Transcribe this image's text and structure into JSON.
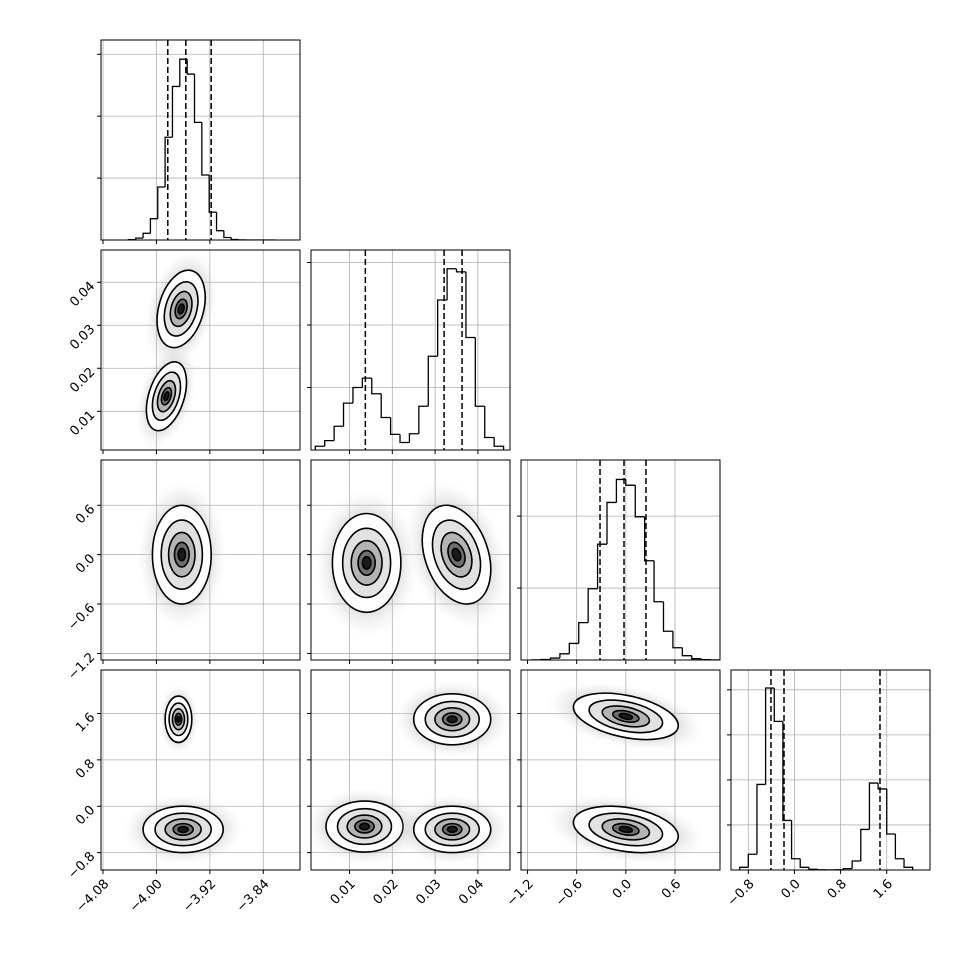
{
  "chart_data": {
    "type": "corner",
    "color": "#000000",
    "grid": true,
    "params": [
      {
        "lim": [
          -4.083,
          -3.785
        ],
        "ticks": [
          {
            "value": -4.08,
            "label": "−4.08"
          },
          {
            "value": -4.0,
            "label": "−4.00"
          },
          {
            "value": -3.92,
            "label": "−3.92"
          },
          {
            "value": -3.84,
            "label": "−3.84"
          }
        ]
      },
      {
        "lim": [
          0.001,
          0.0475
        ],
        "ticks": [
          0.01,
          0.02,
          0.03,
          0.04
        ]
      },
      {
        "lim": [
          -1.28,
          1.15
        ],
        "ticks": [
          {
            "value": -1.2,
            "label": "−1.2"
          },
          {
            "value": -0.6,
            "label": "−0.6"
          },
          {
            "value": 0,
            "label": "0.0"
          },
          0.6
        ]
      },
      {
        "lim": [
          -1.1,
          2.35
        ],
        "ticks": [
          {
            "value": -0.8,
            "label": "−0.8"
          },
          {
            "value": 0,
            "label": "0.0"
          },
          0.8,
          1.6
        ]
      }
    ],
    "hists": [
      {
        "bins": [
          -4.042,
          -4.031,
          -4.02,
          -4.009,
          -3.998,
          -3.987,
          -3.976,
          -3.965,
          -3.954,
          -3.943,
          -3.932,
          -3.921,
          -3.91,
          -3.899,
          -3.888,
          -3.877,
          -3.866,
          -3.855,
          -3.844,
          -3.833,
          -3.822
        ],
        "values": [
          5,
          30,
          108,
          344,
          856,
          1660,
          2480,
          2920,
          2680,
          1900,
          1050,
          450,
          150,
          40,
          8,
          2,
          0,
          0,
          0,
          0
        ],
        "quantiles": [
          -3.983,
          -3.956,
          -3.918
        ],
        "ylim": [
          0,
          3230
        ],
        "yticks": [
          1000,
          2000,
          3000
        ]
      },
      {
        "bins": [
          0.002,
          0.0042,
          0.0064,
          0.0086,
          0.0108,
          0.013,
          0.0152,
          0.0174,
          0.0196,
          0.0218,
          0.024,
          0.0262,
          0.0284,
          0.0306,
          0.0328,
          0.035,
          0.0372,
          0.0394,
          0.0416,
          0.0438,
          0.046
        ],
        "values": [
          60,
          150,
          380,
          750,
          1000,
          1150,
          900,
          520,
          250,
          120,
          260,
          700,
          1500,
          2400,
          2900,
          2850,
          1800,
          700,
          200,
          60
        ],
        "quantiles": [
          0.0137,
          0.0321,
          0.0363
        ],
        "ylim": [
          0,
          3200
        ],
        "yticks": [
          1000,
          2000,
          3000
        ]
      },
      {
        "bins": [
          -1.15,
          -1.035,
          -0.92,
          -0.805,
          -0.69,
          -0.575,
          -0.46,
          -0.345,
          -0.23,
          -0.115,
          0,
          0.115,
          0.23,
          0.345,
          0.46,
          0.575,
          0.69,
          0.805,
          0.92,
          1.035,
          1.15
        ],
        "values": [
          2,
          7,
          27,
          86,
          230,
          520,
          990,
          1610,
          2190,
          2510,
          2430,
          1990,
          1380,
          810,
          400,
          170,
          60,
          18,
          4,
          1
        ],
        "quantiles": [
          -0.315,
          -0.022,
          0.246
        ],
        "ylim": [
          0,
          2780
        ],
        "yticks": [
          1000,
          2000
        ]
      },
      {
        "bins": [
          -0.95,
          -0.8,
          -0.65,
          -0.5,
          -0.35,
          -0.2,
          -0.05,
          0.1,
          0.25,
          0.4,
          0.55,
          0.7,
          0.85,
          1.0,
          1.15,
          1.3,
          1.45,
          1.6,
          1.75,
          1.9,
          2.05
        ],
        "values": [
          60,
          350,
          1900,
          4040,
          3300,
          1100,
          250,
          60,
          15,
          5,
          2,
          5,
          30,
          200,
          900,
          1930,
          1800,
          800,
          250,
          60
        ],
        "quantiles": [
          -0.407,
          -0.181,
          1.483
        ],
        "ylim": [
          0,
          4440
        ],
        "yticks": [
          1000,
          2000,
          3000,
          4000
        ]
      }
    ],
    "pairs": [
      [
        {
          "blobs": [
            {
              "cx": -3.963,
              "cy": 0.0338,
              "sx": 0.018,
              "sy": 0.0045,
              "rho": 0.3
            },
            {
              "cx": -3.985,
              "cy": 0.0135,
              "sx": 0.015,
              "sy": 0.004,
              "rho": 0.4
            }
          ]
        }
      ],
      [
        {
          "blobs": [
            {
              "cx": -3.962,
              "cy": 0.0,
              "sx": 0.022,
              "sy": 0.3,
              "rho": 0.0
            }
          ]
        },
        {
          "blobs": [
            {
              "cx": 0.014,
              "cy": -0.1,
              "sx": 0.004,
              "sy": 0.3,
              "rho": 0.0
            },
            {
              "cx": 0.035,
              "cy": 0.0,
              "sx": 0.004,
              "sy": 0.3,
              "rho": -0.3
            }
          ]
        }
      ],
      [
        {
          "blobs": [
            {
              "cx": -3.967,
              "cy": 1.5,
              "sx": 0.01,
              "sy": 0.2,
              "rho": 0.0
            },
            {
              "cx": -3.96,
              "cy": -0.4,
              "sx": 0.03,
              "sy": 0.2,
              "rho": 0.0
            }
          ]
        },
        {
          "blobs": [
            {
              "cx": 0.034,
              "cy": 1.5,
              "sx": 0.0045,
              "sy": 0.22,
              "rho": 0.0
            },
            {
              "cx": 0.0135,
              "cy": -0.35,
              "sx": 0.0045,
              "sy": 0.22,
              "rho": 0.0
            },
            {
              "cx": 0.034,
              "cy": -0.4,
              "sx": 0.0045,
              "sy": 0.2,
              "rho": 0.0
            }
          ]
        },
        {
          "blobs": [
            {
              "cx": 0.0,
              "cy": 1.55,
              "sx": 0.32,
              "sy": 0.2,
              "rho": -0.4
            },
            {
              "cx": 0.0,
              "cy": -0.4,
              "sx": 0.32,
              "sy": 0.2,
              "rho": -0.3
            }
          ]
        }
      ]
    ]
  }
}
